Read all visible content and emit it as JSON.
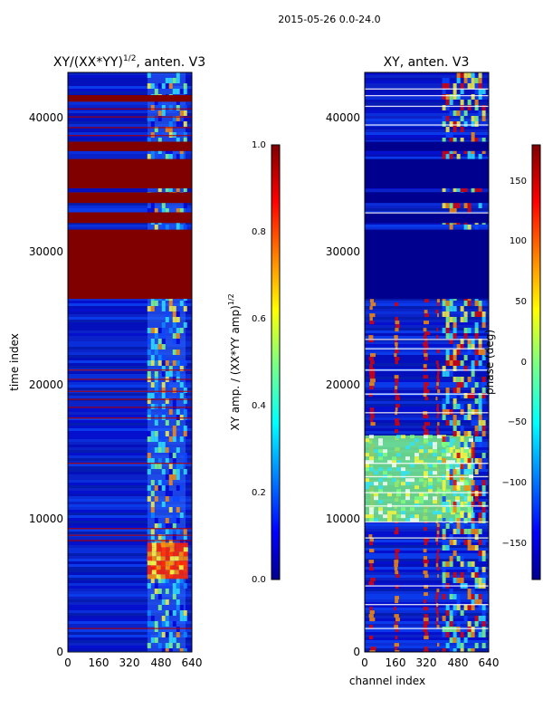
{
  "suptitle": "2015-05-26 0.0-24.0",
  "colors": {
    "dark_blue": "#00008f",
    "mid_blue": "#0a1ec8",
    "dark_red": "#800000",
    "cyan": "#2fe3ff",
    "yellow": "#fff63a",
    "orange": "#ff8c00",
    "green": "#80ff7f"
  },
  "chart_data": [
    {
      "type": "heatmap",
      "title_main": "XY/(XX*YY)",
      "title_sup": "1/2",
      "title_rest": ", anten. V3",
      "xlabel": "",
      "ylabel": "time index",
      "xlim": [
        0,
        640
      ],
      "ylim": [
        0,
        43500
      ],
      "xticks": [
        0,
        160,
        320,
        480,
        640
      ],
      "yticks": [
        0,
        10000,
        20000,
        30000,
        40000
      ],
      "colorbar": {
        "label_main": "XY amp. / (XX*YY amp)",
        "label_sup": "1/2",
        "range": [
          0.0,
          1.0
        ],
        "ticks": [
          "0.0",
          "0.2",
          "0.4",
          "0.6",
          "0.8",
          "1.0"
        ],
        "tick_values": [
          0.0,
          0.2,
          0.4,
          0.6,
          0.8,
          1.0
        ]
      },
      "saturated_row_bands": [
        [
          26500,
          31700
        ],
        [
          32200,
          33000
        ],
        [
          33700,
          34500
        ],
        [
          34800,
          37000
        ],
        [
          37600,
          38300
        ],
        [
          41300,
          41800
        ]
      ],
      "high_value_channel_band": [
        410,
        600
      ]
    },
    {
      "type": "heatmap",
      "title": "XY, anten. V3",
      "xlabel": "channel index",
      "ylabel": "",
      "xlim": [
        0,
        640
      ],
      "ylim": [
        0,
        43500
      ],
      "xticks": [
        0,
        160,
        320,
        480,
        640
      ],
      "yticks": [
        0,
        10000,
        20000,
        30000,
        40000
      ],
      "colorbar": {
        "label": "phase (deg)",
        "range": [
          -180,
          180
        ],
        "ticks": [
          "−150",
          "−100",
          "−50",
          "0",
          "50",
          "100",
          "150"
        ],
        "tick_values": [
          -150,
          -100,
          -50,
          0,
          50,
          100,
          150
        ]
      },
      "uniform_row_bands": [
        [
          26500,
          31700
        ],
        [
          32200,
          33000
        ],
        [
          33700,
          34500
        ],
        [
          34800,
          37000
        ],
        [
          37600,
          38300
        ]
      ],
      "high_value_channel_band": [
        400,
        620
      ]
    }
  ]
}
